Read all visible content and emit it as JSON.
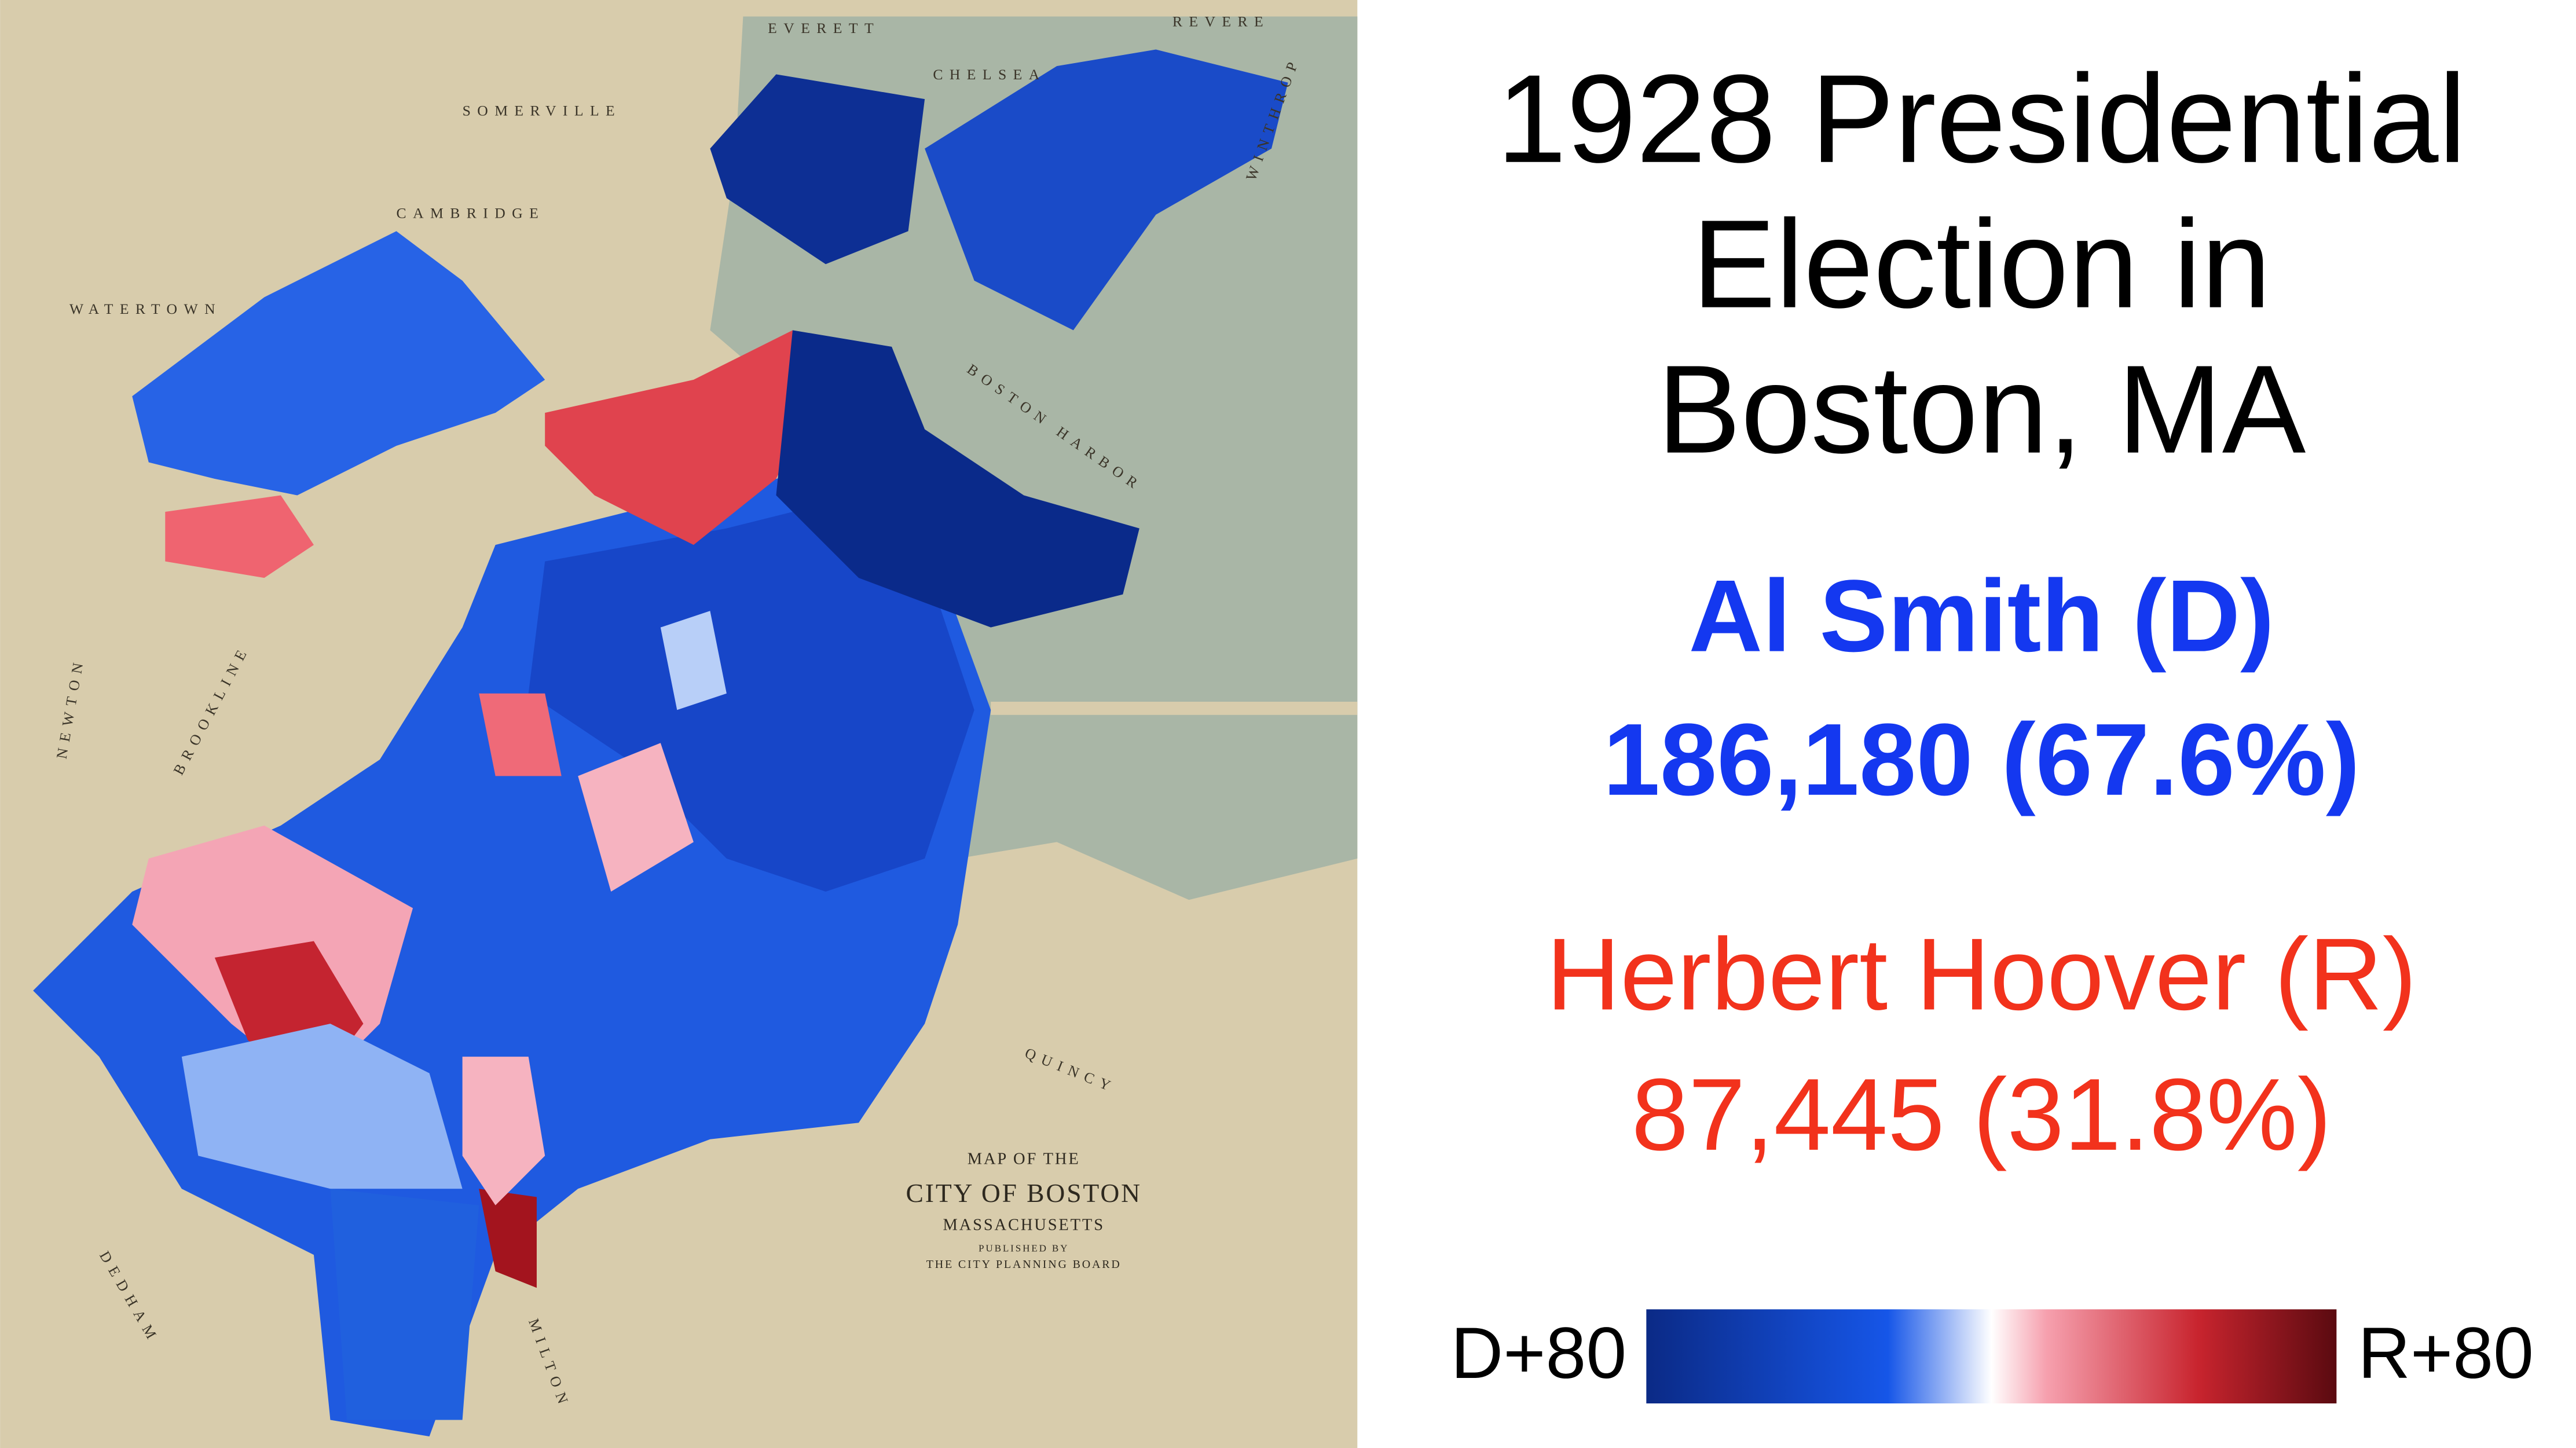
{
  "title_lines": [
    "1928 Presidential",
    "Election in",
    "Boston, MA"
  ],
  "candidates": [
    {
      "name": "Al Smith (D)",
      "result": "186,180 (67.6%)",
      "color": "#1438f0"
    },
    {
      "name": "Herbert Hoover (R)",
      "result": "87,445 (31.8%)",
      "color": "#f2321c"
    }
  ],
  "legend": {
    "left_label": "D+80",
    "right_label": "R+80"
  },
  "map_labels": [
    "EVERETT",
    "REVERE",
    "CHELSEA",
    "SOMERVILLE",
    "CAMBRIDGE",
    "WATERTOWN",
    "NEWTON",
    "BROOKLINE",
    "DEDHAM",
    "MILTON",
    "QUINCY",
    "WINTHROP",
    "BOSTON HARBOR"
  ],
  "map_title": [
    "MAP OF THE",
    "CITY OF BOSTON",
    "MASSACHUSETTS",
    "PUBLISHED BY",
    "THE CITY PLANNING BOARD"
  ]
}
